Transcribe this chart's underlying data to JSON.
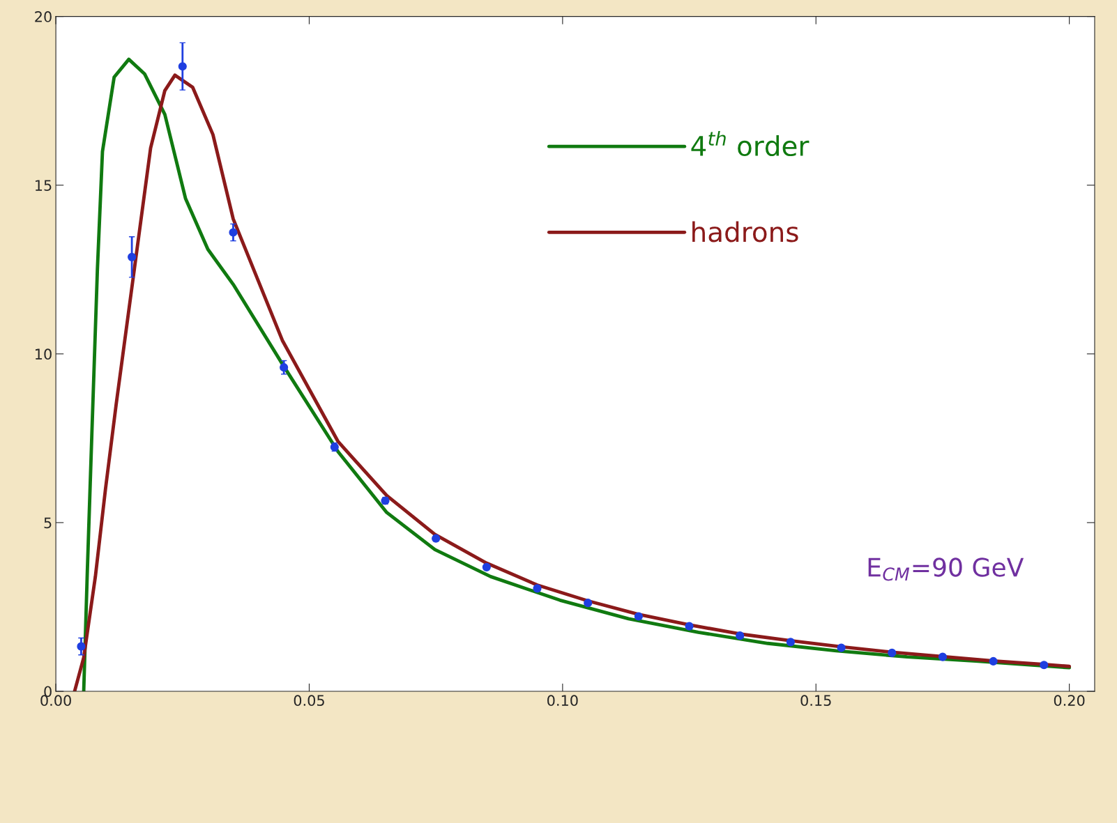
{
  "chart_data": {
    "type": "line",
    "xlim": [
      0,
      0.205
    ],
    "ylim": [
      0,
      20
    ],
    "xticks": [
      {
        "value": 0,
        "label": "0.00"
      },
      {
        "value": 0.05,
        "label": "0.05"
      },
      {
        "value": 0.1,
        "label": "0.10"
      },
      {
        "value": 0.15,
        "label": "0.15"
      },
      {
        "value": 0.2,
        "label": "0.20"
      }
    ],
    "yticks": [
      0,
      5,
      10,
      15,
      20
    ],
    "grid": false,
    "legend": "top",
    "line_style": "solid",
    "series": [
      {
        "name": "4$^{th}$ order",
        "color": "#107a10",
        "x": [
          0.0055,
          0.0062,
          0.0071,
          0.0082,
          0.0092,
          0.0115,
          0.0144,
          0.0175,
          0.0215,
          0.0256,
          0.03,
          0.035,
          0.0447,
          0.0557,
          0.0653,
          0.0748,
          0.0858,
          0.0995,
          0.113,
          0.1268,
          0.1405,
          0.154,
          0.168,
          0.1815,
          0.2
        ],
        "values": [
          0,
          3.5,
          7.6,
          12.5,
          16,
          18.2,
          18.73,
          18.3,
          17.1,
          14.6,
          13.1,
          12.06,
          9.7,
          7.1,
          5.3,
          4.2,
          3.4,
          2.7,
          2.15,
          1.75,
          1.42,
          1.2,
          1.02,
          0.9,
          0.7
        ]
      },
      {
        "name": "hadrons",
        "color": "#8b1a1a",
        "x": [
          0.0037,
          0.0055,
          0.0078,
          0.0098,
          0.0119,
          0.0153,
          0.0187,
          0.0215,
          0.0235,
          0.027,
          0.031,
          0.035,
          0.0447,
          0.0557,
          0.0653,
          0.0748,
          0.085,
          0.095,
          0.105,
          0.115,
          0.125,
          0.135,
          0.145,
          0.155,
          0.165,
          0.175,
          0.185,
          0.195,
          0.2
        ],
        "values": [
          0,
          1,
          3.4,
          6,
          8.5,
          12.3,
          16.1,
          17.8,
          18.26,
          17.9,
          16.5,
          14,
          10.4,
          7.4,
          5.8,
          4.65,
          3.8,
          3.15,
          2.68,
          2.28,
          1.97,
          1.7,
          1.5,
          1.32,
          1.16,
          1.03,
          0.9,
          0.8,
          0.74
        ]
      },
      {
        "type": "scatter",
        "color": "#1f3fe0",
        "marker": "circle",
        "x": [
          0.005,
          0.015,
          0.025,
          0.035,
          0.045,
          0.055,
          0.065,
          0.075,
          0.085,
          0.095,
          0.105,
          0.115,
          0.125,
          0.135,
          0.145,
          0.155,
          0.165,
          0.175,
          0.185,
          0.195
        ],
        "values": [
          1.33,
          12.87,
          18.52,
          13.6,
          9.6,
          7.24,
          5.65,
          4.53,
          3.68,
          3.05,
          2.62,
          2.22,
          1.93,
          1.65,
          1.46,
          1.29,
          1.14,
          1.02,
          0.89,
          0.78
        ],
        "errors": [
          0.25,
          0.6,
          0.7,
          0.25,
          0.2,
          0.12,
          0.1,
          0.08,
          0.06,
          0.05,
          0.04,
          0.04,
          0.03,
          0.03,
          0.03,
          0.03,
          0.02,
          0.02,
          0.02,
          0.02
        ]
      }
    ],
    "annotations": [
      "E$_{CM}$=90 GeV"
    ]
  }
}
